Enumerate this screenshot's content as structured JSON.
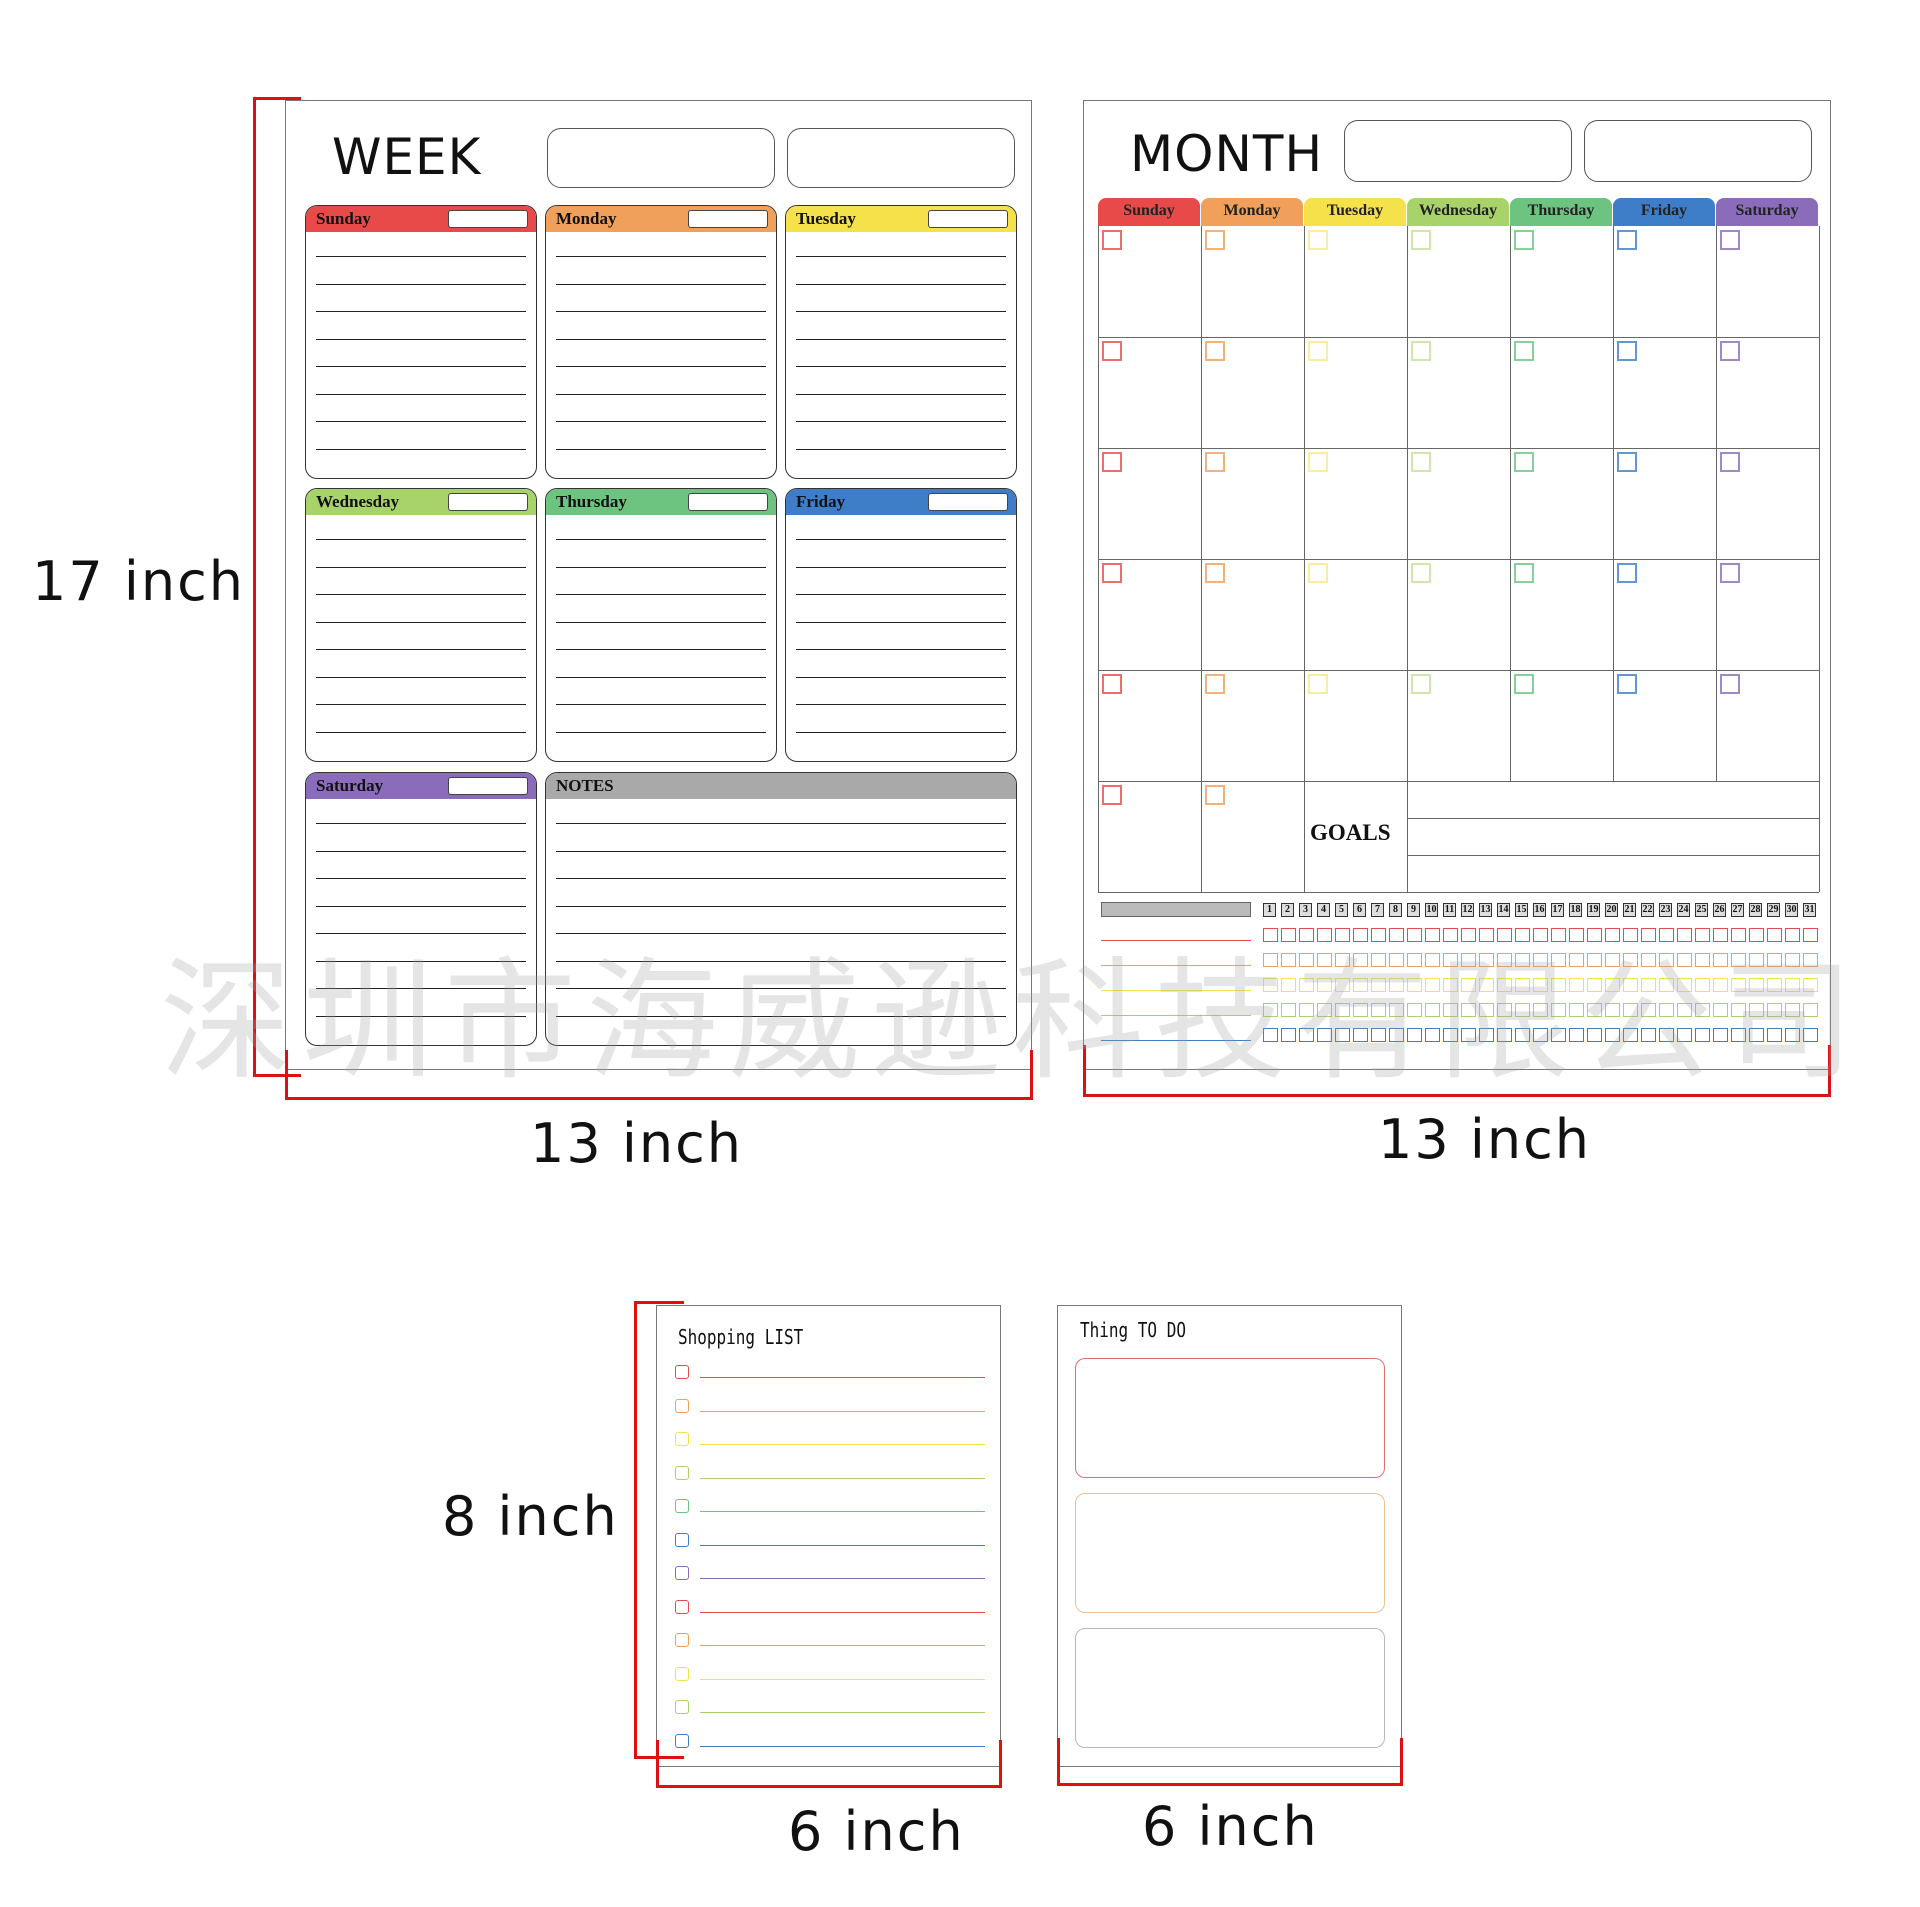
{
  "dimensions": {
    "week_height": "17 inch",
    "week_width": "13 inch",
    "month_width": "13 inch",
    "shopping_height": "8 inch",
    "shopping_width": "6 inch",
    "todo_width": "6 inch"
  },
  "week": {
    "title": "WEEK",
    "days": [
      "Sunday",
      "Monday",
      "Tuesday",
      "Wednesday",
      "Thursday",
      "Friday",
      "Saturday"
    ],
    "notes_label": "NOTES"
  },
  "month": {
    "title": "MONTH",
    "days": [
      "Sunday",
      "Monday",
      "Tuesday",
      "Wednesday",
      "Thursday",
      "Friday",
      "Saturday"
    ],
    "goals_label": "GOALS",
    "tracker_days": [
      "1",
      "2",
      "3",
      "4",
      "5",
      "6",
      "7",
      "8",
      "9",
      "10",
      "11",
      "12",
      "13",
      "14",
      "15",
      "16",
      "17",
      "18",
      "19",
      "20",
      "21",
      "22",
      "23",
      "24",
      "25",
      "26",
      "27",
      "28",
      "29",
      "30",
      "31"
    ]
  },
  "shopping": {
    "title": "Shopping LIST"
  },
  "todo": {
    "title": "Thing TO DO"
  },
  "watermark": "深圳市海威逊科技有限公司",
  "colors": {
    "red": "#e84a4a",
    "orange": "#f0a05a",
    "yellow": "#f5e14a",
    "lightgreen": "#a8d26a",
    "green": "#6cc480",
    "blue": "#3e7dc8",
    "purple": "#8a6cbb",
    "gray": "#a9a9a9",
    "dimension_line": "#dd1111"
  }
}
